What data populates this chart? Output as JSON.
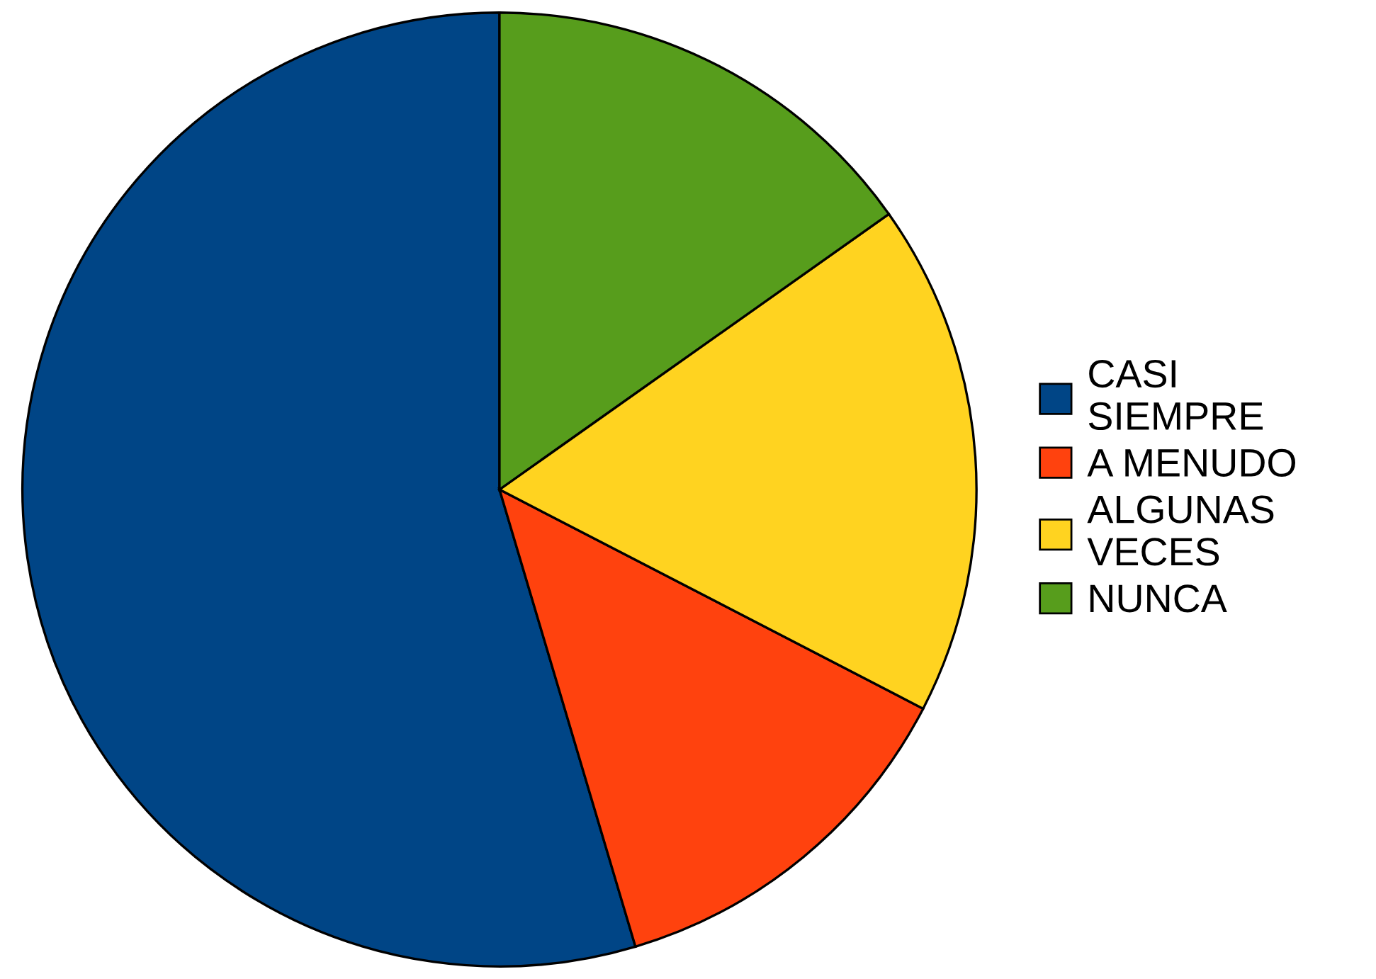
{
  "chart_data": {
    "type": "pie",
    "categories": [
      "CASI SIEMPRE",
      "A MENUDO",
      "ALGUNAS VECES",
      "NUNCA"
    ],
    "values": [
      54.6,
      12.8,
      17.4,
      15.2
    ],
    "colors": [
      "#004586",
      "#ff420e",
      "#ffd320",
      "#579d1c"
    ],
    "legend": "right"
  }
}
